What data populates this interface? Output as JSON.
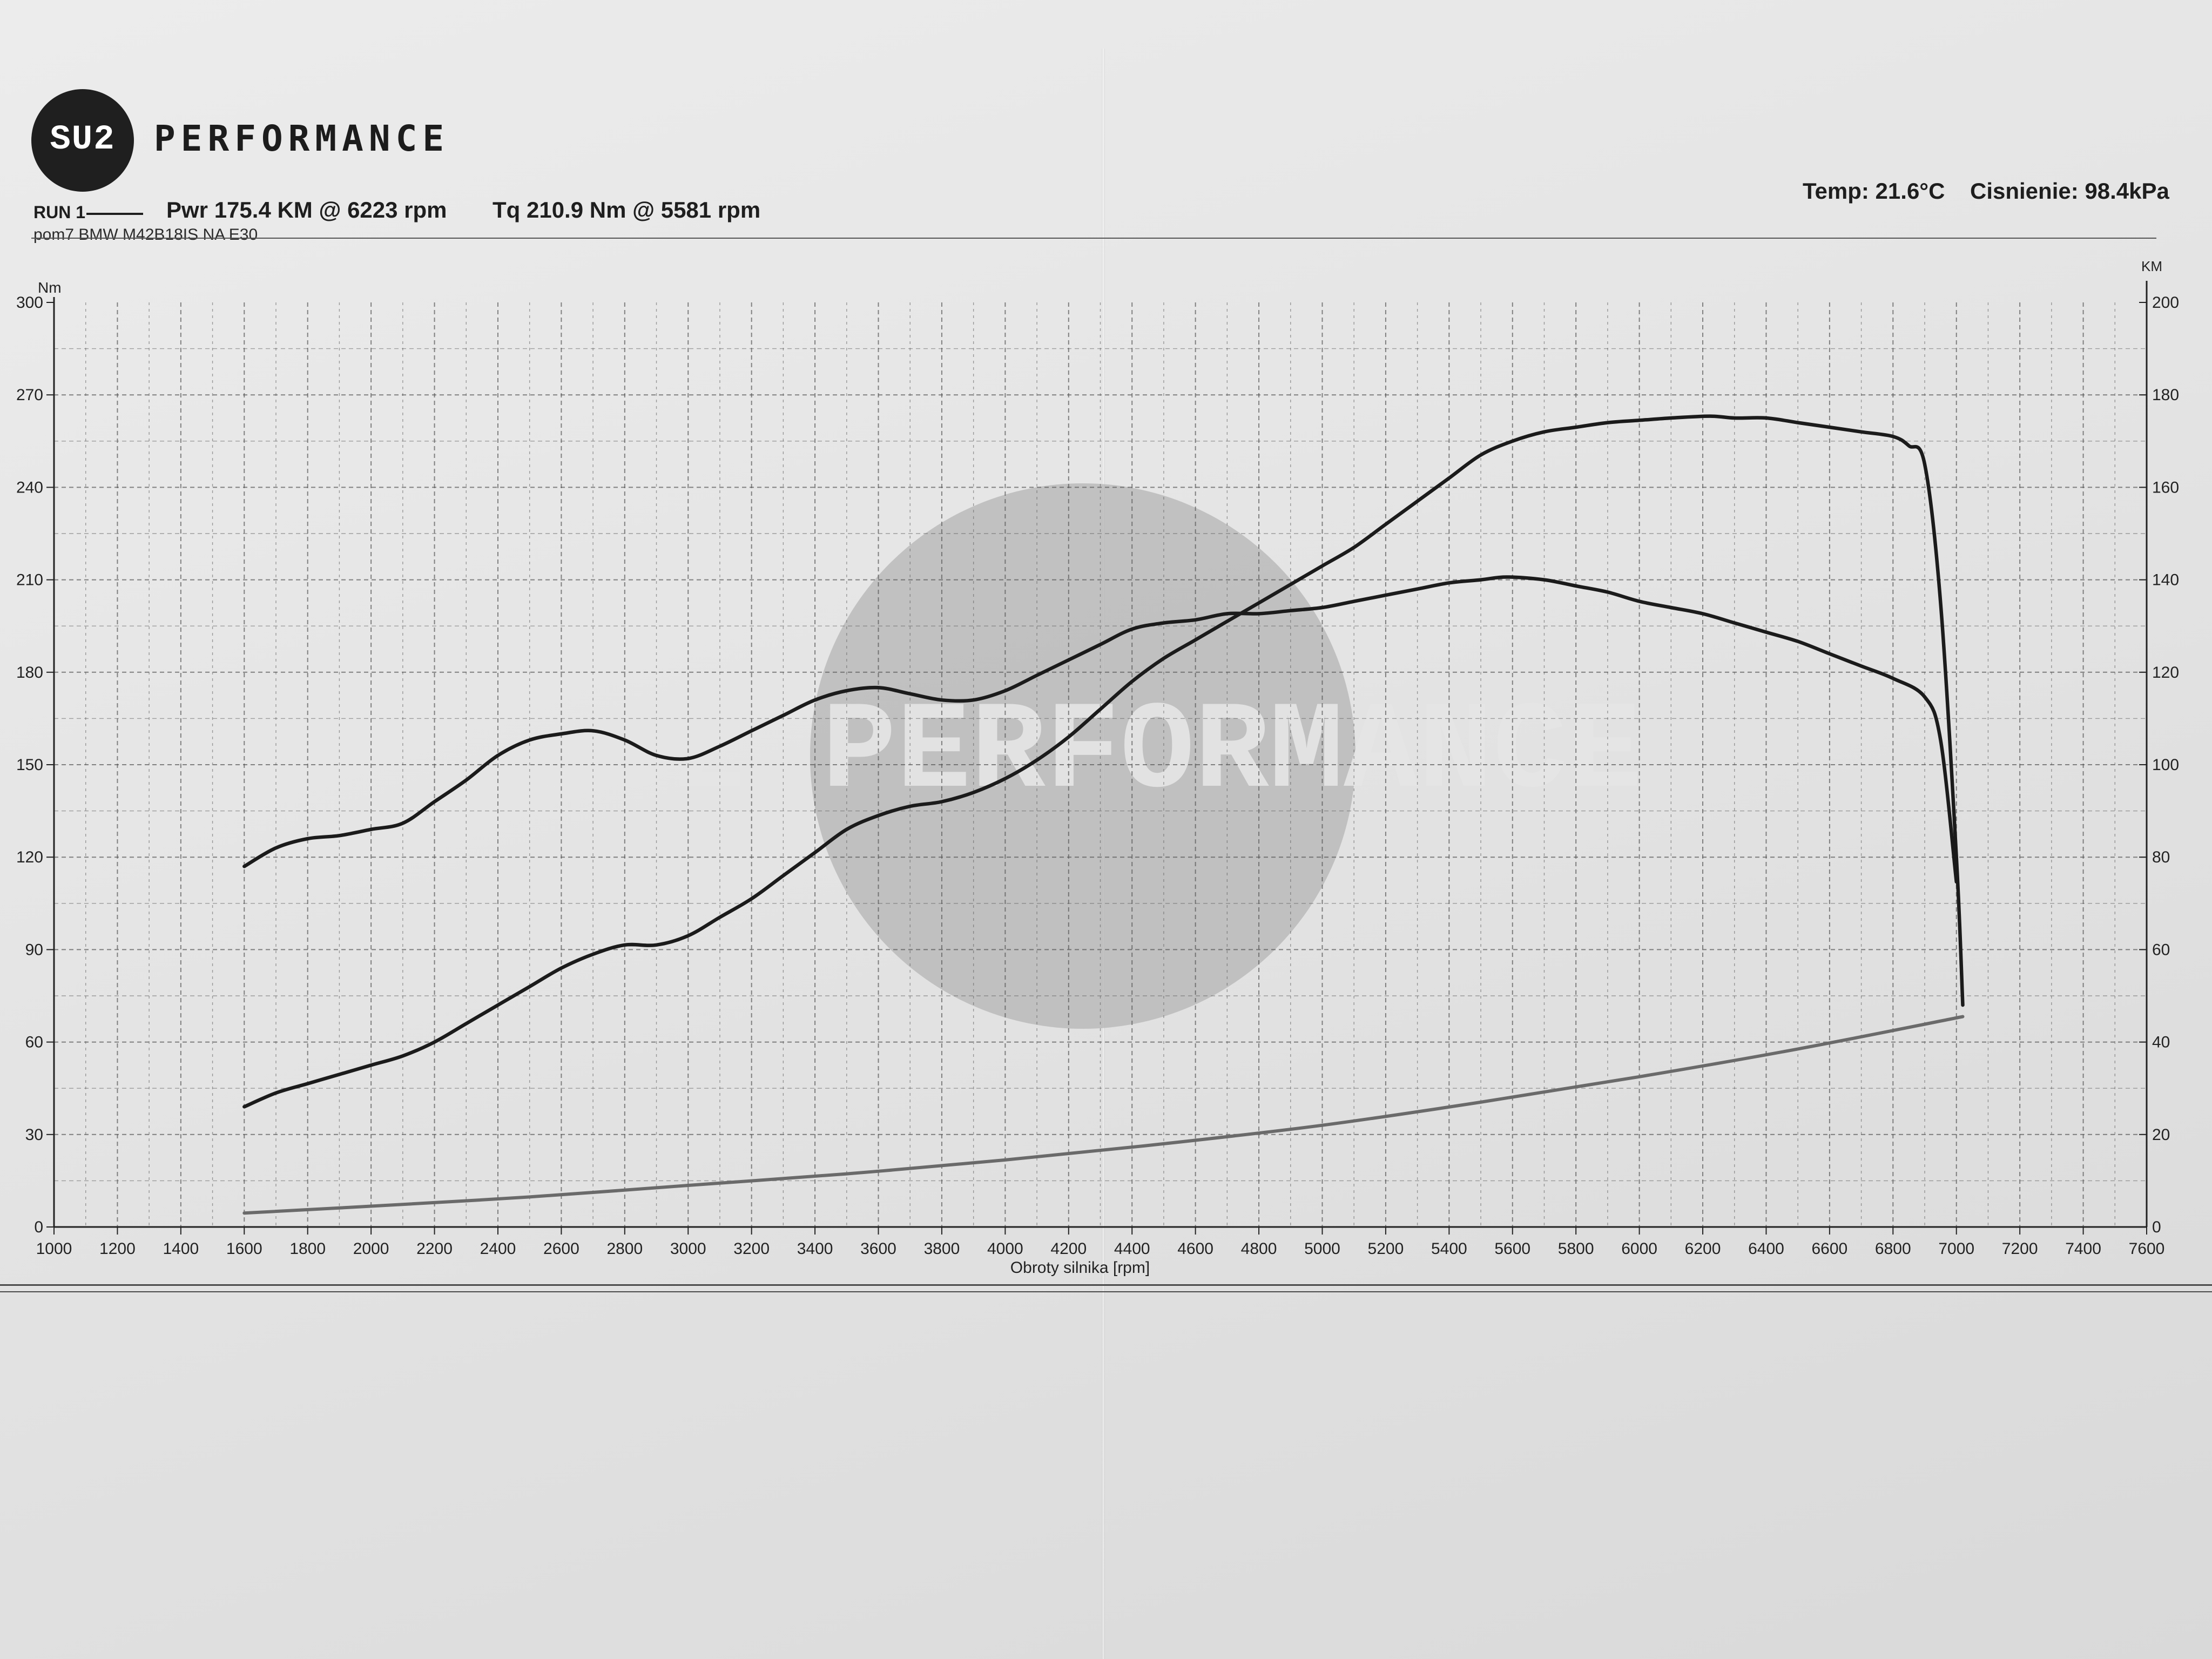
{
  "header": {
    "logo_badge": "SU2",
    "logo_brand": "PERFORMANCE",
    "run_label": "RUN 1",
    "pwr_text": "Pwr  175.4 KM @ 6223 rpm",
    "tq_text": "Tq 210.9 Nm @ 5581 rpm",
    "run_name": "pom7 BMW M42B18IS NA E30",
    "temp_text": "Temp: 21.6°C",
    "pressure_text": "Cisnienie: 98.4kPa"
  },
  "colors": {
    "curve": "#1b1b1b",
    "loss_curve": "#6a6a6a",
    "grid": "#555555",
    "watermark": "#b4b4b4"
  },
  "chart_data": {
    "type": "line",
    "xlabel": "Obroty silnika [rpm]",
    "ylabel_left": "Nm",
    "ylabel_right": "KM",
    "xlim": [
      1000,
      7600
    ],
    "ylim_left": [
      0,
      300
    ],
    "ylim_right": [
      0,
      200
    ],
    "x_ticks": [
      1000,
      1200,
      1400,
      1600,
      1800,
      2000,
      2200,
      2400,
      2600,
      2800,
      3000,
      3200,
      3400,
      3600,
      3800,
      4000,
      4200,
      4400,
      4600,
      4800,
      5000,
      5200,
      5400,
      5600,
      5800,
      6000,
      6200,
      6400,
      6600,
      6800,
      7000,
      7200,
      7400,
      7600
    ],
    "y_ticks_left": [
      0,
      30,
      60,
      90,
      120,
      150,
      180,
      210,
      240,
      270,
      300
    ],
    "y_ticks_right": [
      0,
      20,
      40,
      60,
      80,
      100,
      120,
      140,
      160,
      180,
      200
    ],
    "grid": true,
    "watermark": "SU2 PERFORMANCE",
    "series": [
      {
        "axis": "left",
        "x": [
          1600,
          1700,
          1800,
          1900,
          2000,
          2100,
          2200,
          2300,
          2400,
          2500,
          2600,
          2700,
          2800,
          2900,
          3000,
          3100,
          3200,
          3300,
          3400,
          3500,
          3600,
          3700,
          3800,
          3900,
          4000,
          4100,
          4200,
          4300,
          4400,
          4500,
          4600,
          4700,
          4800,
          4900,
          5000,
          5100,
          5200,
          5300,
          5400,
          5500,
          5581,
          5700,
          5800,
          5900,
          6000,
          6100,
          6200,
          6300,
          6400,
          6500,
          6600,
          6700,
          6800,
          6900,
          6950,
          7000
        ],
        "y": [
          117,
          123,
          126,
          127,
          129,
          131,
          138,
          145,
          153,
          158,
          160,
          161,
          158,
          153,
          152,
          156,
          161,
          166,
          171,
          174,
          175,
          173,
          171,
          171,
          174,
          179,
          184,
          189,
          194,
          196,
          197,
          199,
          199,
          200,
          201,
          203,
          205,
          207,
          209,
          210,
          210.9,
          210,
          208,
          206,
          203,
          201,
          199,
          196,
          193,
          190,
          186,
          182,
          178,
          172,
          158,
          112
        ]
      },
      {
        "axis": "right",
        "x": [
          1600,
          1700,
          1800,
          1900,
          2000,
          2100,
          2200,
          2300,
          2400,
          2500,
          2600,
          2700,
          2800,
          2900,
          3000,
          3100,
          3200,
          3300,
          3400,
          3500,
          3600,
          3700,
          3800,
          3900,
          4000,
          4100,
          4200,
          4300,
          4400,
          4500,
          4600,
          4700,
          4800,
          4900,
          5000,
          5100,
          5200,
          5300,
          5400,
          5500,
          5600,
          5700,
          5800,
          5900,
          6000,
          6100,
          6223,
          6300,
          6400,
          6500,
          6600,
          6700,
          6800,
          6850,
          6900,
          6950,
          7000,
          7020
        ],
        "y": [
          26,
          29,
          31,
          33,
          35,
          37,
          40,
          44,
          48,
          52,
          56,
          59,
          61,
          61,
          63,
          67,
          71,
          76,
          81,
          86,
          89,
          91,
          92,
          94,
          97,
          101,
          106,
          112,
          118,
          123,
          127,
          131,
          135,
          139,
          143,
          147,
          152,
          157,
          162,
          167,
          170,
          172,
          173,
          174,
          174.5,
          175,
          175.4,
          175,
          175,
          174,
          173,
          172,
          171,
          169,
          165,
          135,
          80,
          48
        ]
      },
      {
        "axis": "right",
        "x": [
          1600,
          2000,
          2500,
          3000,
          3500,
          4000,
          4500,
          5000,
          5500,
          6000,
          6500,
          7020
        ],
        "y": [
          3,
          4.5,
          6.5,
          9,
          11.5,
          14.5,
          18,
          22,
          27,
          32.5,
          38.5,
          45.5
        ]
      }
    ]
  }
}
